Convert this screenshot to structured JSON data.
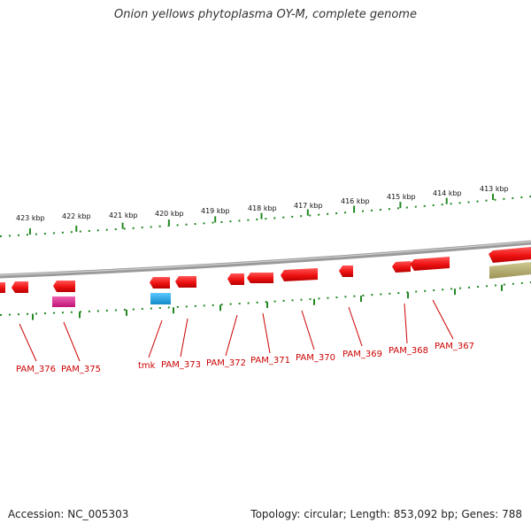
{
  "title": "Onion yellows phytoplasma OY-M, complete genome",
  "footer": {
    "accession": "Accession: NC_005303",
    "summary": "Topology: circular; Length: 853,092 bp; Genes: 788"
  },
  "outer_ruler": {
    "labels": [
      "423 kbp",
      "422 kbp",
      "421 kbp",
      "420 kbp",
      "419 kbp",
      "418 kbp",
      "417 kbp",
      "416 kbp",
      "415 kbp",
      "414 kbp",
      "413 kbp"
    ]
  },
  "gene_labels": [
    "PAM_376",
    "PAM_375",
    "tmk",
    "PAM_373",
    "PAM_372",
    "PAM_371",
    "PAM_370",
    "PAM_369",
    "PAM_368",
    "PAM_367"
  ],
  "colors": {
    "gene_red": "#ee1111",
    "gene_magenta": "#e0208c",
    "gene_cyan": "#1aa8e8",
    "gene_olive": "#b5ad6a",
    "backbone": "#8a8a8a",
    "tick_green": "#228822",
    "label_red": "#cc0000"
  }
}
